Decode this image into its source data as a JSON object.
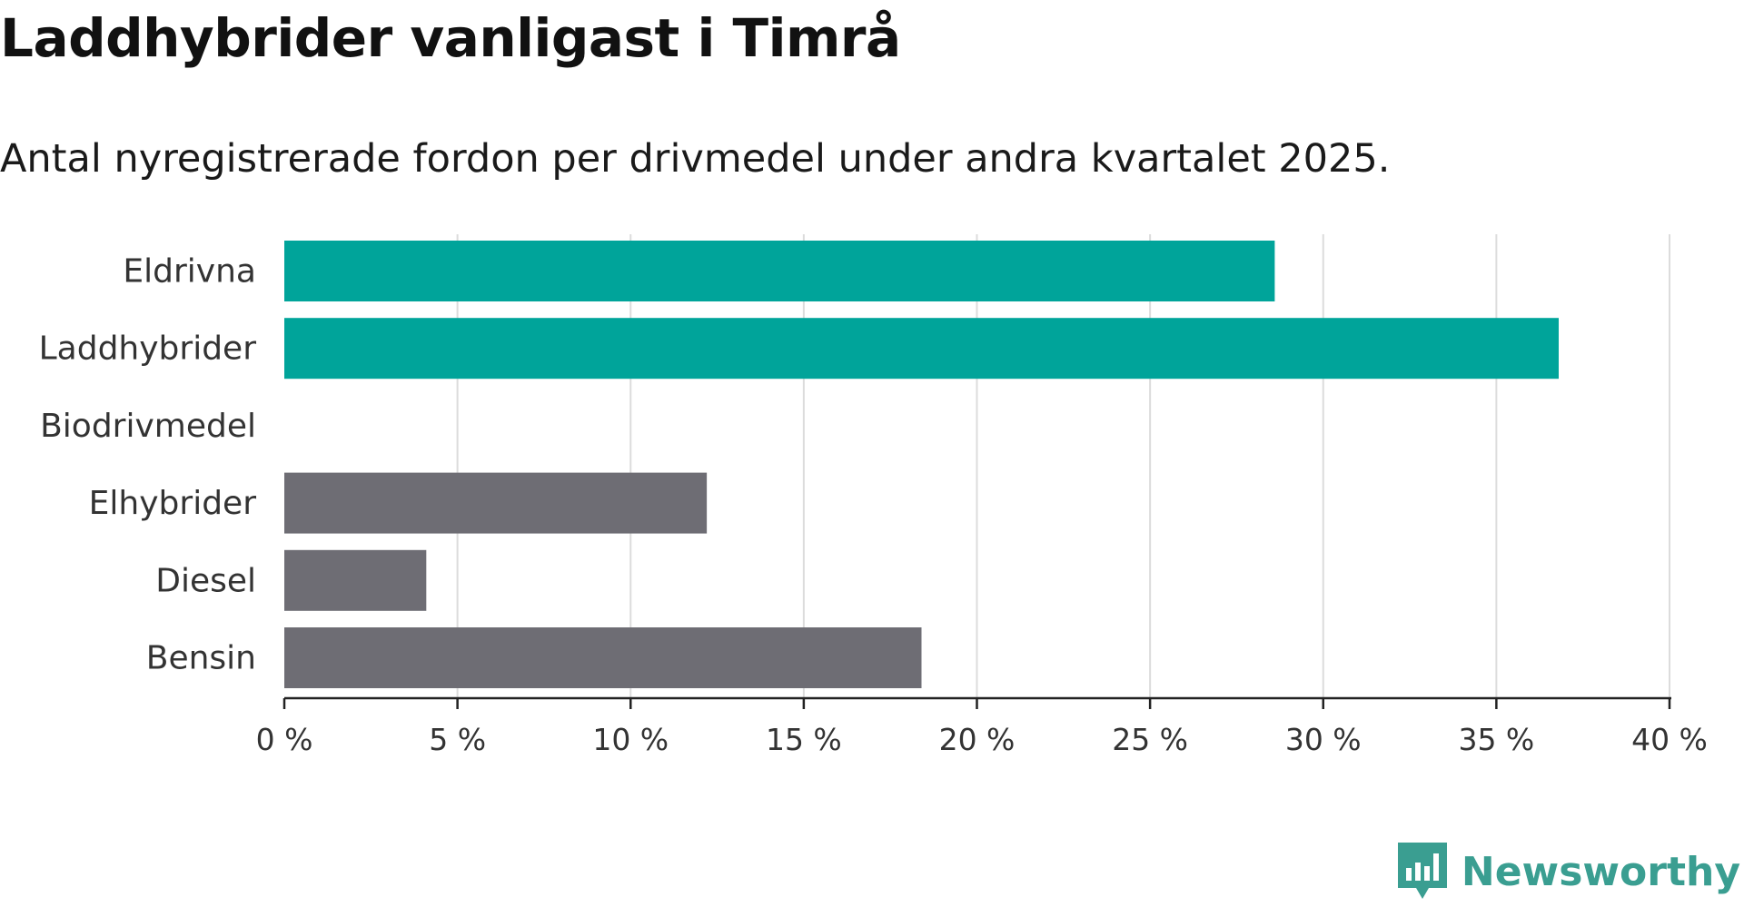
{
  "chart_data": {
    "type": "bar",
    "orientation": "horizontal",
    "title": "Laddhybrider vanligast i Timrå",
    "subtitle": "Antal nyregistrerade fordon per drivmedel under andra kvartalet 2025.",
    "categories": [
      "Eldrivna",
      "Laddhybrider",
      "Biodrivmedel",
      "Elhybrider",
      "Diesel",
      "Bensin"
    ],
    "values": [
      28.6,
      36.8,
      0,
      12.2,
      4.1,
      18.4
    ],
    "bar_colors": [
      "#00a49a",
      "#00a49a",
      "#00a49a",
      "#6e6d74",
      "#6e6d74",
      "#6e6d74"
    ],
    "xlim": [
      0,
      40
    ],
    "x_ticks": [
      0,
      5,
      10,
      15,
      20,
      25,
      30,
      35,
      40
    ],
    "x_tick_labels": [
      "0 %",
      "5 %",
      "10 %",
      "15 %",
      "20 %",
      "25 %",
      "30 %",
      "35 %",
      "40 %"
    ],
    "grid": "vertical",
    "xlabel": "",
    "ylabel": ""
  },
  "brand": {
    "name": "Newsworthy",
    "color": "#3a9e91"
  }
}
